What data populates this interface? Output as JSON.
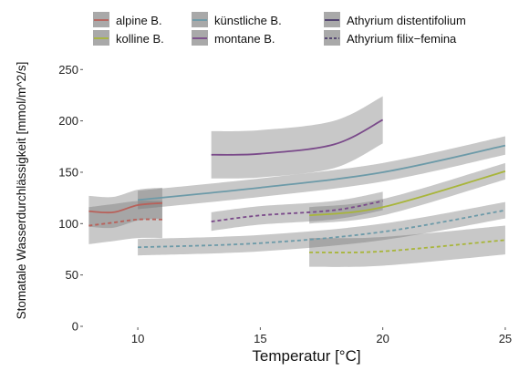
{
  "chart_data": {
    "type": "line",
    "xlabel": "Temperatur [°C]",
    "ylabel": "Stomatale Wasserdurchlässigkeit [mmol/m^2/s]",
    "xlim": [
      7.8,
      25.3
    ],
    "ylim": [
      0,
      260
    ],
    "x_ticks": [
      10,
      15,
      20,
      25
    ],
    "y_ticks": [
      0,
      50,
      100,
      150,
      200,
      250
    ],
    "grid": false,
    "legend_position": "top",
    "legend": {
      "habitats": [
        {
          "label": "alpine B.",
          "color": "#b8615a"
        },
        {
          "label": "kolline B.",
          "color": "#a8b53a"
        },
        {
          "label": "künstliche B.",
          "color": "#6c9aa8"
        },
        {
          "label": "montane B.",
          "color": "#7a4a8a"
        }
      ],
      "species": [
        {
          "label": "Athyrium distentifolium",
          "dash": "solid"
        },
        {
          "label": "Athyrium filix−femina",
          "dash": "dashed"
        }
      ]
    },
    "series": [
      {
        "name": "alpine B.",
        "color": "#b8615a",
        "dash": "solid",
        "x": [
          8,
          9,
          10,
          11
        ],
        "y": [
          112,
          111,
          118,
          120
        ],
        "band": 15
      },
      {
        "name": "alpine B.",
        "color": "#b8615a",
        "dash": "dashed",
        "x": [
          8,
          9,
          10,
          11
        ],
        "y": [
          98,
          101,
          104,
          104
        ],
        "band": 18
      },
      {
        "name": "künstliche B.",
        "color": "#6c9aa8",
        "dash": "solid",
        "x": [
          10,
          15,
          20,
          25
        ],
        "y": [
          123,
          135,
          150,
          176
        ],
        "band": 9
      },
      {
        "name": "künstliche B.",
        "color": "#6c9aa8",
        "dash": "dashed",
        "x": [
          10,
          15,
          20,
          25
        ],
        "y": [
          77,
          81,
          92,
          113
        ],
        "band": 8
      },
      {
        "name": "montane B.",
        "color": "#7a4a8a",
        "dash": "solid",
        "x": [
          13,
          15,
          18,
          20
        ],
        "y": [
          167,
          168,
          177,
          201
        ],
        "band": 23
      },
      {
        "name": "montane B.",
        "color": "#7a4a8a",
        "dash": "dashed",
        "x": [
          13,
          15,
          18,
          20
        ],
        "y": [
          102,
          108,
          113,
          122
        ],
        "band": 9
      },
      {
        "name": "kolline B.",
        "color": "#a8b53a",
        "dash": "solid",
        "x": [
          17,
          20,
          25
        ],
        "y": [
          108,
          116,
          151
        ],
        "band": 8
      },
      {
        "name": "kolline B.",
        "color": "#a8b53a",
        "dash": "dashed",
        "x": [
          17,
          20,
          25
        ],
        "y": [
          72,
          73,
          84
        ],
        "band": 14
      }
    ]
  }
}
